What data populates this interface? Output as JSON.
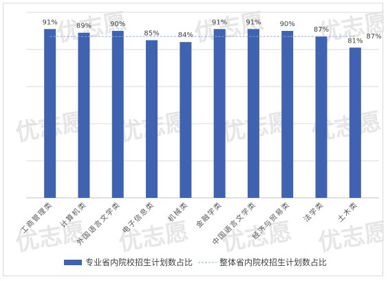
{
  "chart_data": {
    "type": "bar",
    "categories": [
      "工商管理类",
      "计算机类",
      "外国语言文学类",
      "电子信息类",
      "机械类",
      "金融学类",
      "中国语言文学类",
      "经济与贸易类",
      "法学类",
      "土木类"
    ],
    "series": [
      {
        "name": "专业省内院校招生计划数占比",
        "values": [
          91,
          89,
          90,
          85,
          84,
          91,
          91,
          90,
          87,
          81
        ],
        "labels": [
          "91%",
          "89%",
          "90%",
          "85%",
          "84%",
          "91%",
          "91%",
          "90%",
          "87%",
          "81%"
        ],
        "color": "#3f63b0"
      },
      {
        "name": "整体省内院校招生计划数占比",
        "type": "line",
        "value": 87,
        "label": "87%",
        "color": "#8fa9db",
        "style": "dashed"
      }
    ],
    "ylim": [
      0,
      100
    ],
    "grid": true,
    "legend": "bottom"
  },
  "watermark": "优志愿"
}
